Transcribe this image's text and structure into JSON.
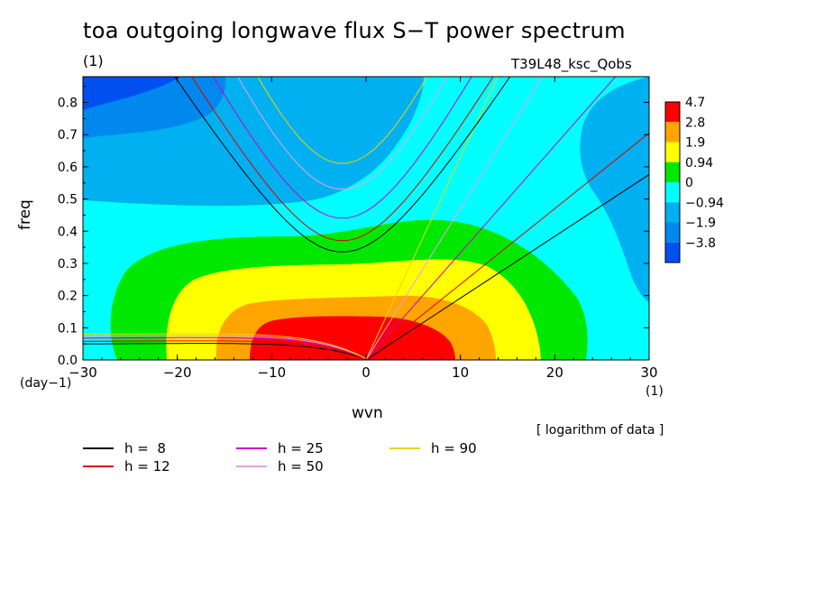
{
  "figure": {
    "title": "toa outgoing longwave flux S−T power spectrum",
    "title_unit": "(1)",
    "experiment": "T39L48_ksc_Qobs",
    "xlabel": "wvn",
    "x_unit": "(1)",
    "ylabel": "freq",
    "y_unit": "(day−1)",
    "note": "[ logarithm of data ]"
  },
  "legend": [
    {
      "label": "h =  8",
      "color": "#000000"
    },
    {
      "label": "h = 12",
      "color": "#e00000"
    },
    {
      "label": "h = 25",
      "color": "#cc00cc"
    },
    {
      "label": "h = 50",
      "color": "#e8a0e8"
    },
    {
      "label": "h = 90",
      "color": "#e8d800"
    }
  ],
  "chart_data": {
    "type": "heatmap",
    "title": "toa outgoing longwave flux S−T power spectrum",
    "xlabel": "wvn",
    "ylabel": "freq",
    "xlim": [
      -30,
      30
    ],
    "ylim": [
      0,
      0.88
    ],
    "xticks": [
      -30,
      -20,
      -10,
      0,
      10,
      20,
      30
    ],
    "yticks": [
      0.0,
      0.1,
      0.2,
      0.3,
      0.4,
      0.5,
      0.6,
      0.7,
      0.8
    ],
    "grid": false,
    "colorbar": {
      "labels": [
        "4.7",
        "2.8",
        "1.9",
        "0.94",
        "0",
        "−0.94",
        "−1.9",
        "−3.8"
      ],
      "colors": [
        "#ff0000",
        "#ffa500",
        "#ffff00",
        "#00e800",
        "#00ffff",
        "#00b0f0",
        "#0088ee",
        "#0050f0"
      ]
    },
    "dispersion_curves": [
      {
        "name": "h =  8",
        "color": "#000000"
      },
      {
        "name": "h = 12",
        "color": "#e00000"
      },
      {
        "name": "h = 25",
        "color": "#cc00cc"
      },
      {
        "name": "h = 50",
        "color": "#e8a0e8"
      },
      {
        "name": "h = 90",
        "color": "#e8d800"
      }
    ],
    "ridge_points": [
      {
        "x": -4,
        "y": 0.05
      },
      {
        "x": 0,
        "y": 0.05
      },
      {
        "x": 4,
        "y": 0.05
      }
    ]
  }
}
